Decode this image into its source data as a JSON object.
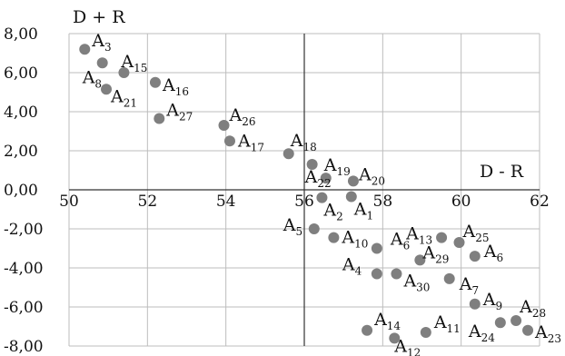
{
  "chart_data": {
    "type": "scatter",
    "title": "",
    "xlabel": "D - R",
    "ylabel": "D + R",
    "xlim": [
      50,
      62
    ],
    "ylim": [
      -8,
      8
    ],
    "x_ticks": [
      "50",
      "52",
      "54",
      "56",
      "58",
      "60",
      "62"
    ],
    "y_ticks": [
      "8,00",
      "6,00",
      "4,00",
      "2,00",
      "0,00",
      "-2,00",
      "-4,00",
      "-6,00",
      "-8,00"
    ],
    "grid": true,
    "marker_color": "#7f7f7f",
    "points": [
      {
        "name": "A",
        "sub": "3",
        "x": 50.4,
        "y": 7.2
      },
      {
        "name": "A",
        "sub": "8",
        "x": 50.85,
        "y": 6.5
      },
      {
        "name": "A",
        "sub": "15",
        "x": 51.4,
        "y": 6.0
      },
      {
        "name": "A",
        "sub": "21",
        "x": 50.95,
        "y": 5.15
      },
      {
        "name": "A",
        "sub": "16",
        "x": 52.2,
        "y": 5.5
      },
      {
        "name": "A",
        "sub": "27",
        "x": 52.3,
        "y": 3.65
      },
      {
        "name": "A",
        "sub": "26",
        "x": 53.95,
        "y": 3.3
      },
      {
        "name": "A",
        "sub": "17",
        "x": 54.1,
        "y": 2.5
      },
      {
        "name": "A",
        "sub": "18",
        "x": 55.6,
        "y": 1.85
      },
      {
        "name": "A",
        "sub": "22",
        "x": 56.2,
        "y": 1.3
      },
      {
        "name": "A",
        "sub": "19",
        "x": 56.55,
        "y": 0.6
      },
      {
        "name": "A",
        "sub": "20",
        "x": 57.25,
        "y": 0.45
      },
      {
        "name": "A",
        "sub": "2",
        "x": 56.45,
        "y": -0.4
      },
      {
        "name": "A",
        "sub": "1",
        "x": 57.2,
        "y": -0.35
      },
      {
        "name": "A",
        "sub": "5",
        "x": 56.25,
        "y": -2.0
      },
      {
        "name": "A",
        "sub": "10",
        "x": 56.75,
        "y": -2.45
      },
      {
        "name": "A",
        "sub": "13",
        "x": 59.5,
        "y": -2.45
      },
      {
        "name": "A",
        "sub": "25",
        "x": 59.95,
        "y": -2.7
      },
      {
        "name": "A",
        "sub": "6",
        "x": 57.85,
        "y": -3.0
      },
      {
        "name": "A",
        "sub": "29",
        "x": 58.95,
        "y": -3.6
      },
      {
        "name": "A",
        "sub": "6",
        "x": 60.35,
        "y": -3.4
      },
      {
        "name": "A",
        "sub": "4",
        "x": 57.85,
        "y": -4.3
      },
      {
        "name": "A",
        "sub": "30",
        "x": 58.35,
        "y": -4.3
      },
      {
        "name": "A",
        "sub": "7",
        "x": 59.7,
        "y": -4.55
      },
      {
        "name": "A",
        "sub": "9",
        "x": 60.35,
        "y": -5.85
      },
      {
        "name": "A",
        "sub": "28",
        "x": 61.4,
        "y": -6.7
      },
      {
        "name": "A",
        "sub": "14",
        "x": 57.6,
        "y": -7.2
      },
      {
        "name": "A",
        "sub": "12",
        "x": 58.3,
        "y": -7.6
      },
      {
        "name": "A",
        "sub": "11",
        "x": 59.1,
        "y": -7.3
      },
      {
        "name": "A",
        "sub": "24",
        "x": 61.0,
        "y": -6.8
      },
      {
        "name": "A",
        "sub": "23",
        "x": 61.7,
        "y": -7.2
      }
    ]
  }
}
